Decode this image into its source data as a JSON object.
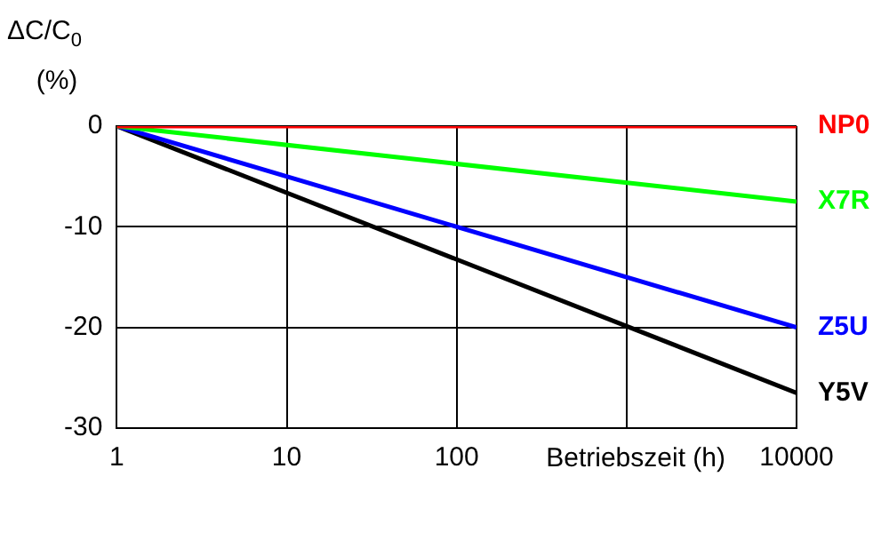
{
  "chart_data": {
    "type": "line",
    "ylabel": "ΔC/C$_{0}$ (%)",
    "xlabel": "Betriebszeit (h)",
    "log": "x",
    "x": [
      1,
      10000
    ],
    "xlim": [
      1,
      10000
    ],
    "xticks": [
      1,
      10,
      100,
      {
        "value": 1000,
        "label": null
      },
      10000
    ],
    "ylim": [
      -30,
      0
    ],
    "yticks": [
      0,
      -10,
      -20,
      -30
    ],
    "grid": true,
    "legend": false,
    "marker": "none",
    "line_style": "solid",
    "series": [
      {
        "name": "NP0",
        "color": "#ff0000",
        "values": [
          0,
          0
        ]
      },
      {
        "name": "X7R",
        "color": "#00ff00",
        "values": [
          0,
          -7.5
        ]
      },
      {
        "name": "Z5U",
        "color": "#0000ff",
        "values": [
          0,
          -20
        ]
      },
      {
        "name": "Y5V",
        "color": "#000000",
        "values": [
          0,
          -26.5
        ]
      }
    ]
  }
}
